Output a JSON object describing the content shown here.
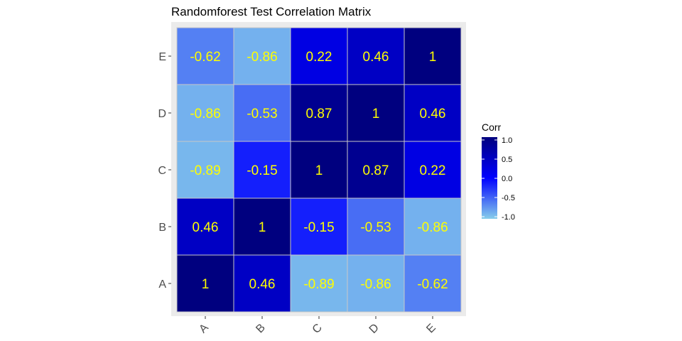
{
  "chart_data": {
    "type": "heatmap",
    "title": "Randomforest Test Correlation Matrix",
    "xlabel": "",
    "ylabel": "",
    "x": [
      "A",
      "B",
      "C",
      "D",
      "E"
    ],
    "y": [
      "A",
      "B",
      "C",
      "D",
      "E"
    ],
    "values": [
      [
        1,
        0.46,
        -0.89,
        -0.86,
        -0.62
      ],
      [
        0.46,
        1,
        -0.15,
        -0.53,
        -0.86
      ],
      [
        -0.89,
        -0.15,
        1,
        0.87,
        0.22
      ],
      [
        -0.86,
        -0.53,
        0.87,
        1,
        0.46
      ],
      [
        -0.62,
        -0.86,
        0.22,
        0.46,
        1
      ]
    ],
    "labels": [
      [
        "1",
        "0.46",
        "-0.89",
        "-0.86",
        "-0.62"
      ],
      [
        "0.46",
        "1",
        "-0.15",
        "-0.53",
        "-0.86"
      ],
      [
        "-0.89",
        "-0.15",
        "1",
        "0.87",
        "0.22"
      ],
      [
        "-0.86",
        "-0.53",
        "0.87",
        "1",
        "0.46"
      ],
      [
        "-0.62",
        "-0.86",
        "0.22",
        "0.46",
        "1"
      ]
    ],
    "x_tick_rotation": 45,
    "legend": {
      "title": "Corr",
      "position": "right",
      "range": [
        -1,
        1
      ],
      "ticks": [
        "1.0",
        "0.5",
        "0.0",
        "-0.5",
        "-1.0"
      ],
      "tick_values": [
        1,
        0.5,
        0,
        -0.5,
        -1
      ]
    },
    "colors": {
      "low": "#87ceeb",
      "mid": "#0000ff",
      "high": "#00007f",
      "label": "#ffff00",
      "panel_bg": "#ebebeb",
      "cell_border": "#c8c8c8"
    }
  }
}
